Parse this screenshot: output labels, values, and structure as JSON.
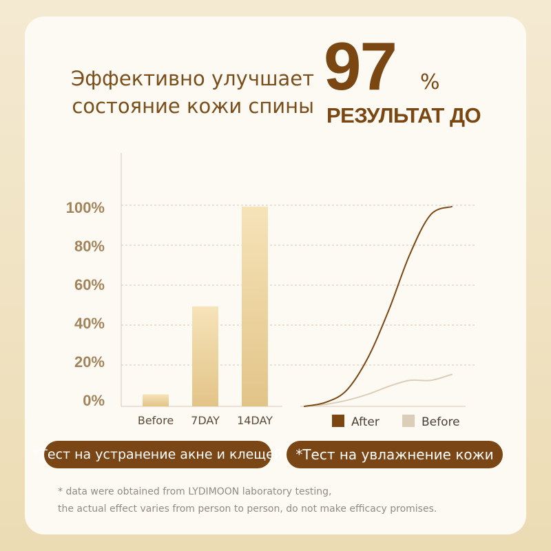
{
  "headline": {
    "line1": "Эффективно улучшает",
    "line2": "состояние кожи спины"
  },
  "stat": {
    "value": "97",
    "unit": "%",
    "label": "РЕЗУЛЬТАТ ДО"
  },
  "colors": {
    "brown": "#7a4712",
    "bar_light": "#f6e3b8",
    "bar_dark": "#e2c488",
    "before_line": "#dccdb9",
    "grid": "#d7c7b3",
    "tick_text": "#a2845b"
  },
  "chart_data": [
    {
      "type": "bar",
      "categories": [
        "Before",
        "7DAY",
        "14DAY"
      ],
      "values": [
        6,
        50,
        100
      ],
      "yticks": [
        "100%",
        "80%",
        "60%",
        "40%",
        "20%",
        "0%"
      ],
      "ylim": [
        0,
        100
      ],
      "grid": true
    },
    {
      "type": "line",
      "series": [
        {
          "name": "After",
          "x": [
            0,
            1,
            2,
            3,
            4,
            5,
            6,
            7
          ],
          "values": [
            0,
            2,
            8,
            24,
            48,
            76,
            96,
            100
          ]
        },
        {
          "name": "Before",
          "x": [
            0,
            1,
            2,
            3,
            4,
            5,
            6,
            7
          ],
          "values": [
            0,
            1,
            3,
            6,
            10,
            13,
            13,
            16
          ]
        }
      ],
      "legend": [
        "After",
        "Before"
      ],
      "legend_position": "bottom",
      "ylim": [
        0,
        100
      ],
      "grid": true
    }
  ],
  "notes": {
    "pill_left": "*Тест на устранение акне и клещей",
    "pill_right": "*Тест на увлажнение кожи",
    "footnote_line1": "* data were obtained from LYDIMOON laboratory testing,",
    "footnote_line2": "the actual effect varies from person to person, do not make efficacy promises."
  }
}
